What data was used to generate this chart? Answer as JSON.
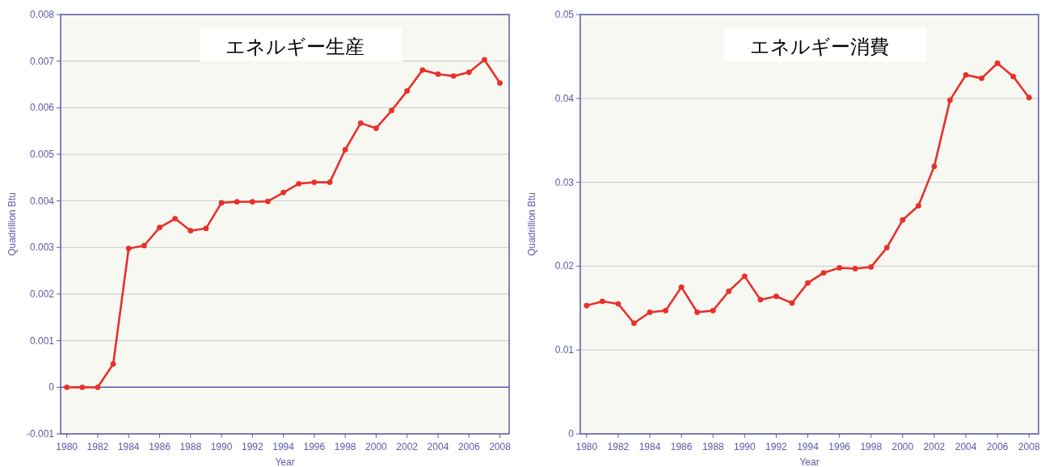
{
  "chart_data": [
    {
      "type": "line",
      "title": "エネルギー生産",
      "xlabel": "Year",
      "ylabel": "Quadrillion Btu",
      "x": [
        1980,
        1981,
        1982,
        1983,
        1984,
        1985,
        1986,
        1987,
        1988,
        1989,
        1990,
        1991,
        1992,
        1993,
        1994,
        1995,
        1996,
        1997,
        1998,
        1999,
        2000,
        2001,
        2002,
        2003,
        2004,
        2005,
        2006,
        2007,
        2008
      ],
      "series": [
        {
          "color": "#e8302a",
          "values": [
            0,
            0,
            0,
            0.0005,
            0.00298,
            0.00304,
            0.00343,
            0.00362,
            0.00336,
            0.00341,
            0.00396,
            0.00398,
            0.00398,
            0.00399,
            0.00418,
            0.00437,
            0.0044,
            0.0044,
            0.0051,
            0.00567,
            0.00556,
            0.00594,
            0.00636,
            0.00681,
            0.00672,
            0.00668,
            0.00676,
            0.00703,
            0.00653
          ]
        }
      ],
      "xlim": [
        1979.6,
        2008.6
      ],
      "ylim": [
        -0.001,
        0.008
      ],
      "xticks": [
        1980,
        1982,
        1984,
        1986,
        1988,
        1990,
        1992,
        1994,
        1996,
        1998,
        2000,
        2002,
        2004,
        2006,
        2008
      ],
      "yticks": [
        -0.001,
        0,
        0.001,
        0.002,
        0.003,
        0.004,
        0.005,
        0.006,
        0.007,
        0.008
      ],
      "grid": "y",
      "marker": "circle",
      "ref_lines": [
        {
          "axis": "y",
          "value": 0,
          "color": "#5a5aaa"
        }
      ]
    },
    {
      "type": "line",
      "title": "エネルギー消費",
      "xlabel": "Year",
      "ylabel": "Quadrillion Btu",
      "x": [
        1980,
        1981,
        1982,
        1983,
        1984,
        1985,
        1986,
        1987,
        1988,
        1989,
        1990,
        1991,
        1992,
        1993,
        1994,
        1995,
        1996,
        1997,
        1998,
        1999,
        2000,
        2001,
        2002,
        2003,
        2004,
        2005,
        2006,
        2007,
        2008
      ],
      "series": [
        {
          "color": "#e8302a",
          "values": [
            0.0153,
            0.0158,
            0.0155,
            0.0132,
            0.0145,
            0.0147,
            0.0175,
            0.0145,
            0.0147,
            0.017,
            0.0188,
            0.016,
            0.0164,
            0.0156,
            0.018,
            0.0192,
            0.0198,
            0.0197,
            0.0199,
            0.0222,
            0.0255,
            0.0272,
            0.0319,
            0.0398,
            0.0428,
            0.0424,
            0.0442,
            0.0426,
            0.0401
          ]
        }
      ],
      "xlim": [
        1979.6,
        2008.6
      ],
      "ylim": [
        0,
        0.05
      ],
      "xticks": [
        1980,
        1982,
        1984,
        1986,
        1988,
        1990,
        1992,
        1994,
        1996,
        1998,
        2000,
        2002,
        2004,
        2006,
        2008
      ],
      "yticks": [
        0,
        0.01,
        0.02,
        0.03,
        0.04,
        0.05
      ],
      "grid": "y",
      "marker": "circle"
    }
  ]
}
